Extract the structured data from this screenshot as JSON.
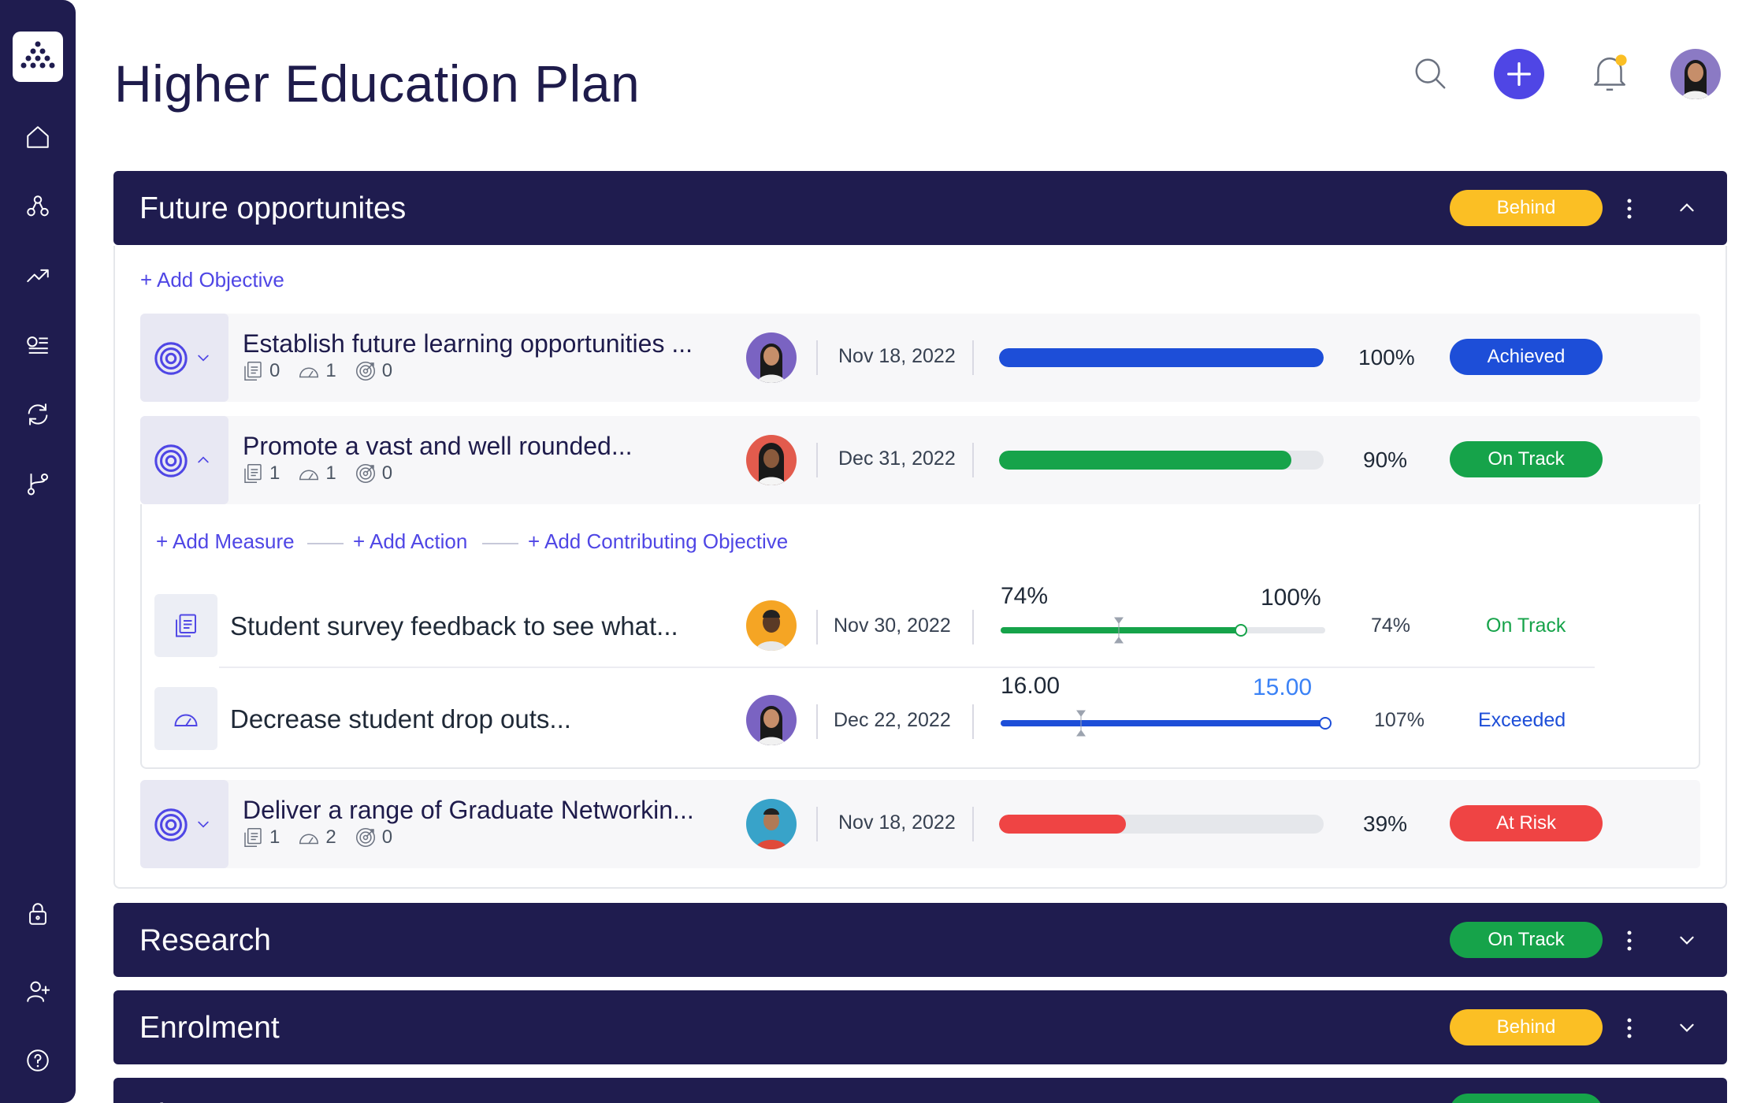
{
  "page": {
    "title": "Higher Education Plan"
  },
  "sidebar": {
    "items": [
      {
        "name": "home-icon"
      },
      {
        "name": "hierarchy-icon"
      },
      {
        "name": "trend-icon"
      },
      {
        "name": "list-icon"
      },
      {
        "name": "sync-icon"
      },
      {
        "name": "branch-icon"
      },
      {
        "name": "lock-icon"
      },
      {
        "name": "add-user-icon"
      },
      {
        "name": "help-icon"
      }
    ]
  },
  "colors": {
    "navy": "#1f1c4f",
    "accent": "#4f46e5",
    "behind": "#fbbf24",
    "on_track": "#16a34a",
    "achieved": "#1d4ed8",
    "at_risk": "#ef4444",
    "exceeded_text": "#1d4ed8"
  },
  "sections": [
    {
      "title": "Future opportunites",
      "status": "Behind",
      "expanded": true
    },
    {
      "title": "Research",
      "status": "On Track",
      "expanded": false
    },
    {
      "title": "Enrolment",
      "status": "Behind",
      "expanded": false
    },
    {
      "title": "Fi",
      "status": "",
      "expanded": false
    }
  ],
  "panel": {
    "add_objective": "+ Add Objective",
    "add_measure": "+ Add Measure",
    "add_action": "+ Add Action",
    "add_contributing": "+ Add Contributing Objective"
  },
  "objectives": [
    {
      "title": "Establish future learning opportunities ...",
      "measures": "0",
      "actions": "1",
      "contributing": "0",
      "date": "Nov 18, 2022",
      "progress": 100,
      "percent": "100%",
      "status": "Achieved"
    },
    {
      "title": "Promote a vast and well rounded...",
      "measures": "1",
      "actions": "1",
      "contributing": "0",
      "date": "Dec 31, 2022",
      "progress": 90,
      "percent": "90%",
      "status": "On Track"
    },
    {
      "title": "Deliver a range of Graduate Networkin...",
      "measures": "1",
      "actions": "2",
      "contributing": "0",
      "date": "Nov 18, 2022",
      "progress": 39,
      "percent": "39%",
      "status": "At Risk"
    }
  ],
  "measures": [
    {
      "title": "Student survey feedback to see what...",
      "date": "Nov 30, 2022",
      "current": "74%",
      "target": "100%",
      "progress": 74,
      "percent": "74%",
      "status": "On Track"
    },
    {
      "title": "Decrease student drop outs...",
      "date": "Dec 22, 2022",
      "current": "16.00",
      "target": "15.00",
      "progress": 100,
      "percent": "107%",
      "status": "Exceeded"
    }
  ]
}
